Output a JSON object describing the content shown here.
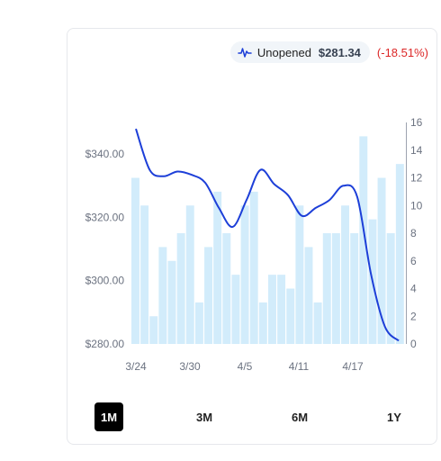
{
  "legend": {
    "series_name": "Unopened",
    "current_value": "$281.34",
    "change": "(-18.51%)",
    "icon": "line-chart-icon",
    "change_color": "#dc2626"
  },
  "range_tabs": [
    "1M",
    "3M",
    "6M",
    "1Y"
  ],
  "active_range": "1M",
  "chart_data": {
    "type": "bar+line",
    "x_labels": [
      "3/24",
      "3/30",
      "4/5",
      "4/11",
      "4/17"
    ],
    "left_axis": {
      "ticks": [
        "$340.00",
        "$320.00",
        "$300.00",
        "$280.00"
      ],
      "tick_values": [
        340,
        320,
        300,
        280
      ],
      "range": [
        280,
        350
      ]
    },
    "right_axis": {
      "ticks": [
        "16",
        "14",
        "12",
        "10",
        "8",
        "6",
        "4",
        "2",
        "0"
      ],
      "tick_values": [
        16,
        14,
        12,
        10,
        8,
        6,
        4,
        2,
        0
      ],
      "range": [
        0,
        16
      ]
    },
    "bars": {
      "color": "#d2ecfb",
      "values": [
        12,
        10,
        2,
        7,
        6,
        8,
        10,
        3,
        7,
        11,
        8,
        5,
        10,
        11,
        3,
        5,
        5,
        4,
        10,
        7,
        3,
        8,
        8,
        10,
        8,
        15,
        9,
        12,
        8,
        13
      ]
    },
    "line": {
      "color": "#1d3fd8",
      "values": [
        348.0,
        335.0,
        333.0,
        334.5,
        333.5,
        331.0,
        323.0,
        317.0,
        325.5,
        335.0,
        330.5,
        327.0,
        320.5,
        323.0,
        325.5,
        330.0,
        326.5,
        302.0,
        285.5,
        281.0
      ]
    }
  }
}
